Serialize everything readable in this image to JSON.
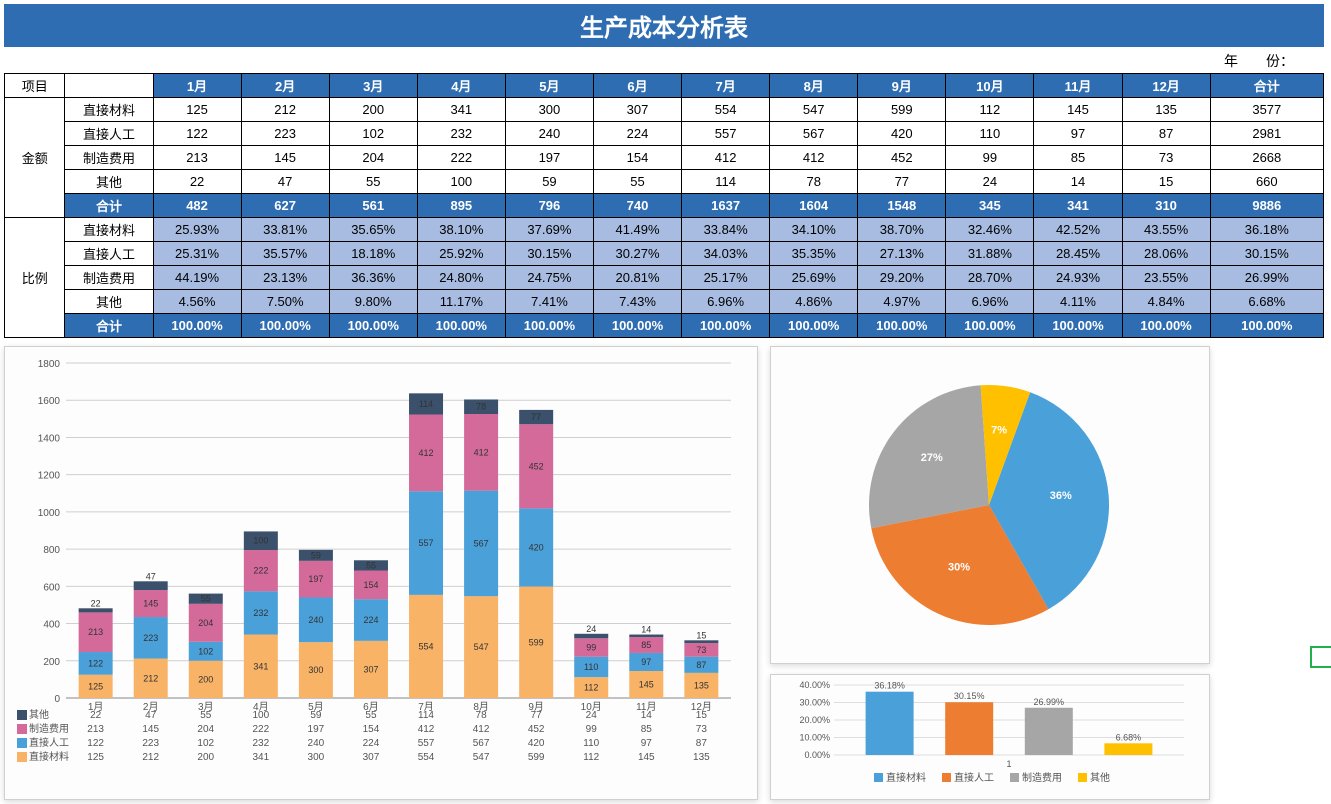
{
  "title": "生产成本分析表",
  "year_label": "年　　份：",
  "table": {
    "project_hdr": "项目",
    "row_group1": "金额",
    "row_group2": "比例",
    "months": [
      "1月",
      "2月",
      "3月",
      "4月",
      "5月",
      "6月",
      "7月",
      "8月",
      "9月",
      "10月",
      "11月",
      "12月"
    ],
    "total_hdr": "合计",
    "categories": [
      "直接材料",
      "直接人工",
      "制造费用",
      "其他"
    ],
    "subtotal_label": "合计",
    "amount": {
      "直接材料": [
        125,
        212,
        200,
        341,
        300,
        307,
        554,
        547,
        599,
        112,
        145,
        135
      ],
      "直接人工": [
        122,
        223,
        102,
        232,
        240,
        224,
        557,
        567,
        420,
        110,
        97,
        87
      ],
      "制造费用": [
        213,
        145,
        204,
        222,
        197,
        154,
        412,
        412,
        452,
        99,
        85,
        73
      ],
      "其他": [
        22,
        47,
        55,
        100,
        59,
        55,
        114,
        78,
        77,
        24,
        14,
        15
      ]
    },
    "amount_total_col": [
      3577,
      2981,
      2668,
      660
    ],
    "amount_subtotal": [
      482,
      627,
      561,
      895,
      796,
      740,
      1637,
      1604,
      1548,
      345,
      341,
      310
    ],
    "amount_grand_total": 9886,
    "pct": {
      "直接材料": [
        "25.93%",
        "33.81%",
        "35.65%",
        "38.10%",
        "37.69%",
        "41.49%",
        "33.84%",
        "34.10%",
        "38.70%",
        "32.46%",
        "42.52%",
        "43.55%"
      ],
      "直接人工": [
        "25.31%",
        "35.57%",
        "18.18%",
        "25.92%",
        "30.15%",
        "30.27%",
        "34.03%",
        "35.35%",
        "27.13%",
        "31.88%",
        "28.45%",
        "28.06%"
      ],
      "制造费用": [
        "44.19%",
        "23.13%",
        "36.36%",
        "24.80%",
        "24.75%",
        "20.81%",
        "25.17%",
        "25.69%",
        "29.20%",
        "28.70%",
        "24.93%",
        "23.55%"
      ],
      "其他": [
        "4.56%",
        "7.50%",
        "9.80%",
        "11.17%",
        "7.41%",
        "7.43%",
        "6.96%",
        "4.86%",
        "4.97%",
        "6.96%",
        "4.11%",
        "4.84%"
      ]
    },
    "pct_total_col": [
      "36.18%",
      "30.15%",
      "26.99%",
      "6.68%"
    ],
    "pct_subtotal": [
      "100.00%",
      "100.00%",
      "100.00%",
      "100.00%",
      "100.00%",
      "100.00%",
      "100.00%",
      "100.00%",
      "100.00%",
      "100.00%",
      "100.00%",
      "100.00%"
    ],
    "pct_grand_total": "100.00%"
  },
  "stacked_chart": {
    "type": "stacked-bar",
    "ymax": 1800,
    "ytick_step": 200,
    "categories_x": [
      "1月",
      "2月",
      "3月",
      "4月",
      "5月",
      "6月",
      "7月",
      "8月",
      "9月",
      "10月",
      "11月",
      "12月"
    ],
    "series_order": [
      "直接材料",
      "直接人工",
      "制造费用",
      "其他"
    ],
    "colors": {
      "直接材料": "#f8b367",
      "直接人工": "#4aa0d9",
      "制造费用": "#d46a9a",
      "其他": "#3a506b"
    },
    "legend_marker": {
      "直接材料": "#f8b367",
      "直接人工": "#4aa0d9",
      "制造费用": "#d46a9a",
      "其他": "#3a506b"
    },
    "data_table_rows": [
      "其他",
      "制造费用",
      "直接人工",
      "直接材料"
    ],
    "background": "#fdfdfd",
    "gridline": "#cfcfcf",
    "label_fontsize": 9,
    "axis_fontsize": 10
  },
  "pie_chart": {
    "type": "pie",
    "slices": [
      {
        "label": "36%",
        "value": 36.18,
        "color": "#4aa0d9"
      },
      {
        "label": "30%",
        "value": 30.15,
        "color": "#ed7d31"
      },
      {
        "label": "27%",
        "value": 26.99,
        "color": "#a6a6a6"
      },
      {
        "label": "7%",
        "value": 6.68,
        "color": "#ffc000"
      }
    ],
    "label_fontsize": 11,
    "label_color": "#ffffff",
    "background": "#ffffff"
  },
  "mini_bar_chart": {
    "type": "bar",
    "categories": [
      "直接材料",
      "直接人工",
      "制造费用",
      "其他"
    ],
    "values": [
      36.18,
      30.15,
      26.99,
      6.68
    ],
    "labels": [
      "36.18%",
      "30.15%",
      "26.99%",
      "6.68%"
    ],
    "colors": [
      "#4aa0d9",
      "#ed7d31",
      "#a6a6a6",
      "#ffc000"
    ],
    "ymax": 40,
    "ytick_step": 10,
    "yticks": [
      "0.00%",
      "10.00%",
      "20.00%",
      "30.00%",
      "40.00%"
    ],
    "axis_label": "1",
    "legend": [
      "直接材料",
      "直接人工",
      "制造费用",
      "其他"
    ],
    "axis_fontsize": 9
  }
}
